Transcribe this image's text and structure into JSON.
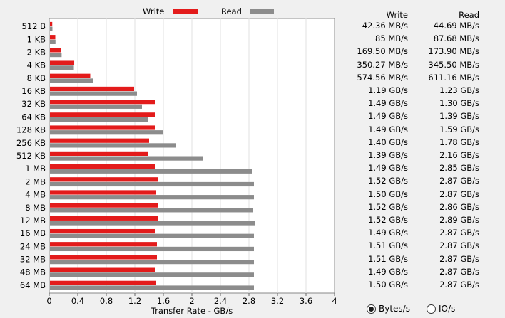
{
  "chart_data": {
    "type": "bar",
    "orientation": "horizontal",
    "categories": [
      "512 B",
      "1 KB",
      "2 KB",
      "4 KB",
      "8 KB",
      "16 KB",
      "32 KB",
      "64 KB",
      "128 KB",
      "256 KB",
      "512 KB",
      "1 MB",
      "2 MB",
      "4 MB",
      "8 MB",
      "12 MB",
      "16 MB",
      "24 MB",
      "32 MB",
      "48 MB",
      "64 MB"
    ],
    "series": [
      {
        "name": "Write",
        "color": "#e31b1b",
        "values": [
          0.04236,
          0.085,
          0.1695,
          0.35027,
          0.57456,
          1.19,
          1.49,
          1.49,
          1.49,
          1.4,
          1.39,
          1.49,
          1.52,
          1.5,
          1.52,
          1.52,
          1.49,
          1.51,
          1.51,
          1.49,
          1.5
        ]
      },
      {
        "name": "Read",
        "color": "#8c8c8c",
        "values": [
          0.04469,
          0.08768,
          0.1739,
          0.3455,
          0.61116,
          1.23,
          1.3,
          1.39,
          1.59,
          1.78,
          2.16,
          2.85,
          2.87,
          2.87,
          2.86,
          2.89,
          2.87,
          2.87,
          2.87,
          2.87,
          2.87
        ]
      }
    ],
    "xlabel": "Transfer Rate - GB/s",
    "xlim": [
      0,
      4
    ],
    "xticks": [
      "0",
      "0.4",
      "0.8",
      "1.2",
      "1.6",
      "2",
      "2.4",
      "2.8",
      "3.2",
      "3.6",
      "4"
    ],
    "grid": true,
    "legend": "top"
  },
  "table": {
    "write_header": "Write",
    "read_header": "Read",
    "write": [
      "42.36 MB/s",
      "85 MB/s",
      "169.50 MB/s",
      "350.27 MB/s",
      "574.56 MB/s",
      "1.19 GB/s",
      "1.49 GB/s",
      "1.49 GB/s",
      "1.49 GB/s",
      "1.40 GB/s",
      "1.39 GB/s",
      "1.49 GB/s",
      "1.52 GB/s",
      "1.50 GB/s",
      "1.52 GB/s",
      "1.52 GB/s",
      "1.49 GB/s",
      "1.51 GB/s",
      "1.51 GB/s",
      "1.49 GB/s",
      "1.50 GB/s"
    ],
    "read": [
      "44.69 MB/s",
      "87.68 MB/s",
      "173.90 MB/s",
      "345.50 MB/s",
      "611.16 MB/s",
      "1.23 GB/s",
      "1.30 GB/s",
      "1.39 GB/s",
      "1.59 GB/s",
      "1.78 GB/s",
      "2.16 GB/s",
      "2.85 GB/s",
      "2.87 GB/s",
      "2.87 GB/s",
      "2.86 GB/s",
      "2.89 GB/s",
      "2.87 GB/s",
      "2.87 GB/s",
      "2.87 GB/s",
      "2.87 GB/s",
      "2.87 GB/s"
    ]
  },
  "units": {
    "options": [
      "Bytes/s",
      "IO/s"
    ],
    "selected": "Bytes/s"
  }
}
